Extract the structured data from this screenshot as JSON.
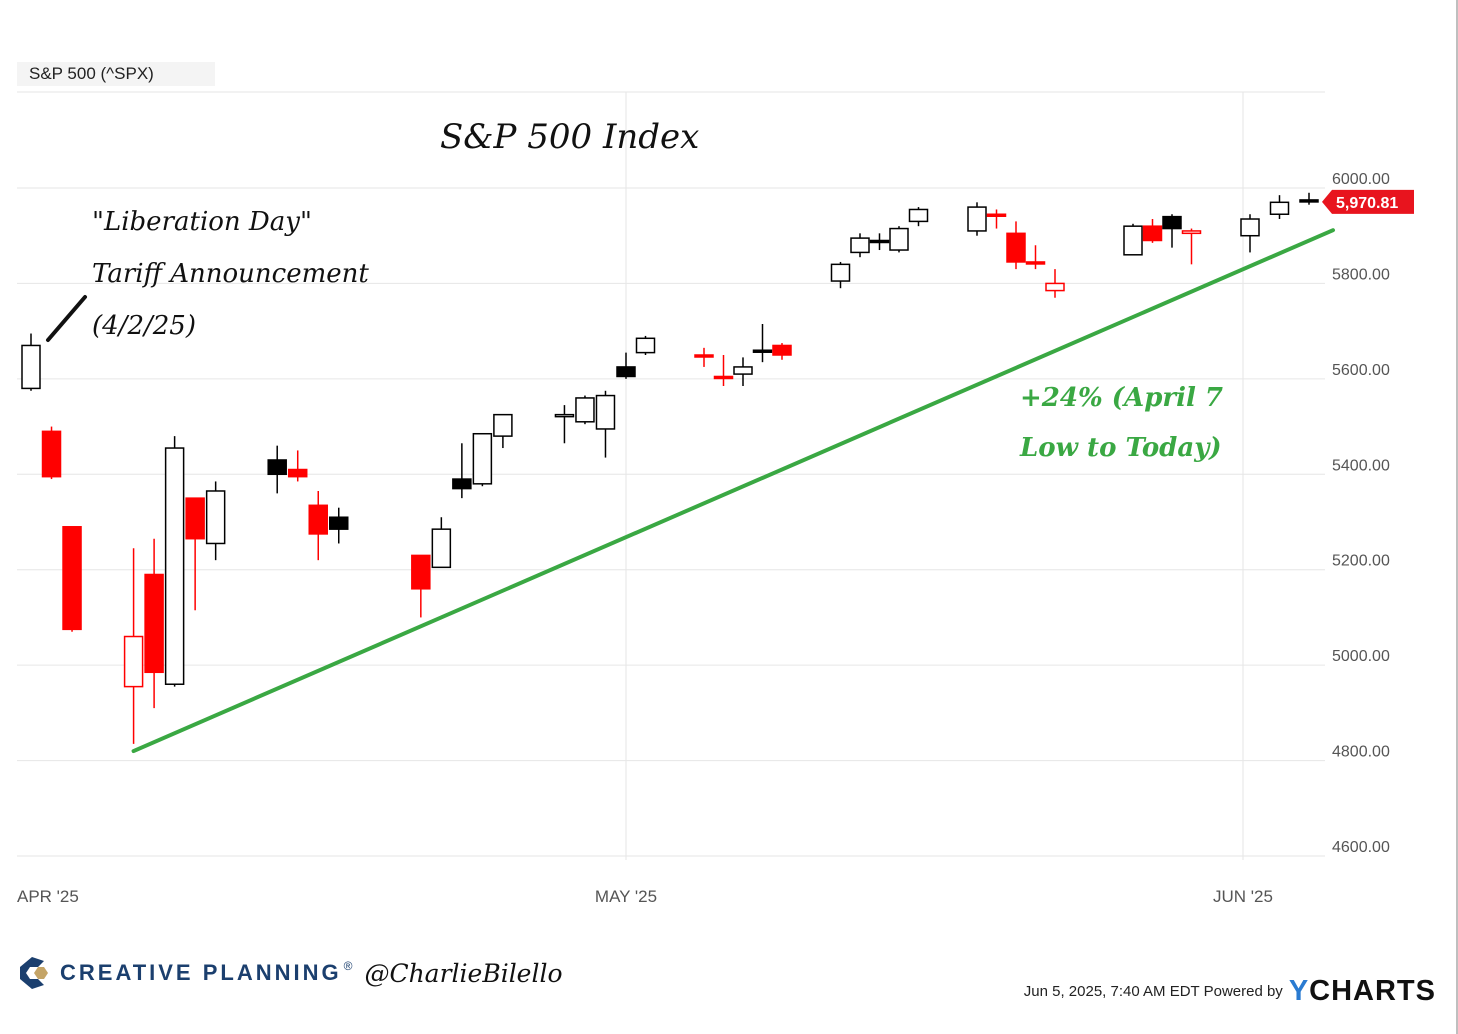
{
  "legend_label": "S&P 500 (^SPX)",
  "colors": {
    "up": "#000000",
    "down": "#ff0000",
    "trend": "#3aa843",
    "grid": "#e6e6e6",
    "price_tag": "#e8141e",
    "annotation_green": "#3aa843"
  },
  "chart_data": {
    "type": "candlestick",
    "title": "S&P 500 Index",
    "ylim": [
      4550,
      6150
    ],
    "y_ticks": [
      "6000.00",
      "5800.00",
      "5600.00",
      "5400.00",
      "5200.00",
      "5000.00",
      "4800.00",
      "4600.00"
    ],
    "x_ticks": [
      "APR '25",
      "MAY '25",
      "JUN '25"
    ],
    "last_price_label": "5,970.81",
    "candles": [
      {
        "date": "2025-04-02",
        "open": 5580,
        "high": 5695,
        "low": 5575,
        "close": 5670,
        "color": "black",
        "filled": false
      },
      {
        "date": "2025-04-03",
        "open": 5490,
        "high": 5500,
        "low": 5390,
        "close": 5395,
        "color": "red",
        "filled": true
      },
      {
        "date": "2025-04-04",
        "open": 5290,
        "high": 5290,
        "low": 5070,
        "close": 5075,
        "color": "red",
        "filled": true
      },
      {
        "date": "2025-04-07",
        "open": 4955,
        "high": 5245,
        "low": 4835,
        "close": 5060,
        "color": "red",
        "filled": false
      },
      {
        "date": "2025-04-08",
        "open": 5190,
        "high": 5265,
        "low": 4910,
        "close": 4985,
        "color": "red",
        "filled": true
      },
      {
        "date": "2025-04-09",
        "open": 4960,
        "high": 5480,
        "low": 4955,
        "close": 5455,
        "color": "black",
        "filled": false
      },
      {
        "date": "2025-04-10",
        "open": 5350,
        "high": 5350,
        "low": 5115,
        "close": 5265,
        "color": "red",
        "filled": true
      },
      {
        "date": "2025-04-11",
        "open": 5255,
        "high": 5385,
        "low": 5220,
        "close": 5365,
        "color": "black",
        "filled": false
      },
      {
        "date": "2025-04-14",
        "open": 5430,
        "high": 5460,
        "low": 5360,
        "close": 5400,
        "color": "black",
        "filled": true
      },
      {
        "date": "2025-04-15",
        "open": 5410,
        "high": 5450,
        "low": 5385,
        "close": 5395,
        "color": "red",
        "filled": true
      },
      {
        "date": "2025-04-16",
        "open": 5335,
        "high": 5365,
        "low": 5220,
        "close": 5275,
        "color": "red",
        "filled": true
      },
      {
        "date": "2025-04-17",
        "open": 5310,
        "high": 5330,
        "low": 5255,
        "close": 5285,
        "color": "black",
        "filled": true
      },
      {
        "date": "2025-04-21",
        "open": 5230,
        "high": 5230,
        "low": 5100,
        "close": 5160,
        "color": "red",
        "filled": true
      },
      {
        "date": "2025-04-22",
        "open": 5205,
        "high": 5310,
        "low": 5205,
        "close": 5285,
        "color": "black",
        "filled": false
      },
      {
        "date": "2025-04-23",
        "open": 5390,
        "high": 5465,
        "low": 5350,
        "close": 5370,
        "color": "black",
        "filled": true
      },
      {
        "date": "2025-04-24",
        "open": 5380,
        "high": 5485,
        "low": 5375,
        "close": 5485,
        "color": "black",
        "filled": false
      },
      {
        "date": "2025-04-25",
        "open": 5480,
        "high": 5525,
        "low": 5455,
        "close": 5525,
        "color": "black",
        "filled": false
      },
      {
        "date": "2025-04-28",
        "open": 5525,
        "high": 5545,
        "low": 5465,
        "close": 5525,
        "color": "black",
        "filled": false
      },
      {
        "date": "2025-04-29",
        "open": 5510,
        "high": 5565,
        "low": 5505,
        "close": 5560,
        "color": "black",
        "filled": false
      },
      {
        "date": "2025-04-30",
        "open": 5495,
        "high": 5575,
        "low": 5435,
        "close": 5565,
        "color": "black",
        "filled": false
      },
      {
        "date": "2025-05-01",
        "open": 5625,
        "high": 5655,
        "low": 5600,
        "close": 5605,
        "color": "black",
        "filled": true
      },
      {
        "date": "2025-05-02",
        "open": 5655,
        "high": 5690,
        "low": 5650,
        "close": 5685,
        "color": "black",
        "filled": false
      },
      {
        "date": "2025-05-05",
        "open": 5650,
        "high": 5665,
        "low": 5625,
        "close": 5650,
        "color": "red",
        "filled": true
      },
      {
        "date": "2025-05-06",
        "open": 5605,
        "high": 5650,
        "low": 5585,
        "close": 5605,
        "color": "red",
        "filled": true
      },
      {
        "date": "2025-05-07",
        "open": 5610,
        "high": 5645,
        "low": 5585,
        "close": 5625,
        "color": "black",
        "filled": false
      },
      {
        "date": "2025-05-08",
        "open": 5660,
        "high": 5715,
        "low": 5635,
        "close": 5660,
        "color": "black",
        "filled": true
      },
      {
        "date": "2025-05-09",
        "open": 5670,
        "high": 5675,
        "low": 5640,
        "close": 5650,
        "color": "red",
        "filled": true
      },
      {
        "date": "2025-05-12",
        "open": 5805,
        "high": 5845,
        "low": 5790,
        "close": 5840,
        "color": "black",
        "filled": false
      },
      {
        "date": "2025-05-13",
        "open": 5865,
        "high": 5905,
        "low": 5855,
        "close": 5895,
        "color": "black",
        "filled": false
      },
      {
        "date": "2025-05-14",
        "open": 5890,
        "high": 5905,
        "low": 5870,
        "close": 5890,
        "color": "black",
        "filled": true
      },
      {
        "date": "2025-05-15",
        "open": 5870,
        "high": 5920,
        "low": 5865,
        "close": 5915,
        "color": "black",
        "filled": false
      },
      {
        "date": "2025-05-16",
        "open": 5930,
        "high": 5960,
        "low": 5920,
        "close": 5955,
        "color": "black",
        "filled": false
      },
      {
        "date": "2025-05-19",
        "open": 5910,
        "high": 5970,
        "low": 5900,
        "close": 5960,
        "color": "black",
        "filled": false
      },
      {
        "date": "2025-05-20",
        "open": 5945,
        "high": 5955,
        "low": 5915,
        "close": 5945,
        "color": "red",
        "filled": true
      },
      {
        "date": "2025-05-21",
        "open": 5905,
        "high": 5930,
        "low": 5830,
        "close": 5845,
        "color": "red",
        "filled": true
      },
      {
        "date": "2025-05-22",
        "open": 5845,
        "high": 5880,
        "low": 5830,
        "close": 5845,
        "color": "red",
        "filled": true
      },
      {
        "date": "2025-05-23",
        "open": 5800,
        "high": 5830,
        "low": 5770,
        "close": 5785,
        "color": "red",
        "filled": false
      },
      {
        "date": "2025-05-27",
        "open": 5860,
        "high": 5925,
        "low": 5860,
        "close": 5920,
        "color": "black",
        "filled": false
      },
      {
        "date": "2025-05-28",
        "open": 5920,
        "high": 5935,
        "low": 5885,
        "close": 5890,
        "color": "red",
        "filled": true
      },
      {
        "date": "2025-05-29",
        "open": 5940,
        "high": 5945,
        "low": 5875,
        "close": 5915,
        "color": "black",
        "filled": true
      },
      {
        "date": "2025-05-30",
        "open": 5905,
        "high": 5915,
        "low": 5840,
        "close": 5910,
        "color": "red",
        "filled": false
      },
      {
        "date": "2025-06-02",
        "open": 5900,
        "high": 5945,
        "low": 5865,
        "close": 5935,
        "color": "black",
        "filled": false
      },
      {
        "date": "2025-06-03",
        "open": 5945,
        "high": 5985,
        "low": 5935,
        "close": 5970,
        "color": "black",
        "filled": false
      },
      {
        "date": "2025-06-04",
        "open": 5975,
        "high": 5990,
        "low": 5965,
        "close": 5971,
        "color": "black",
        "filled": true
      }
    ],
    "trendline": {
      "from": {
        "date": "2025-04-07",
        "value": 4820
      },
      "to": {
        "date": "2025-06-04",
        "value": 5920
      }
    },
    "annotations": {
      "title": "S&P 500 Index",
      "liberation_line1": "\"Liberation Day\"",
      "liberation_line2": "Tariff Announcement",
      "liberation_line3": "(4/2/25)",
      "gain_line1": "+24% (April 7",
      "gain_line2": "Low to Today)"
    }
  },
  "footer": {
    "brand": "CREATIVE PLANNING",
    "handle": "@CharlieBilello",
    "timestamp": "Jun 5, 2025, 7:40 AM EDT Powered by",
    "logo_y": "Y",
    "logo_rest": "CHARTS",
    "brand_icon": "creative-planning-logo-icon"
  }
}
